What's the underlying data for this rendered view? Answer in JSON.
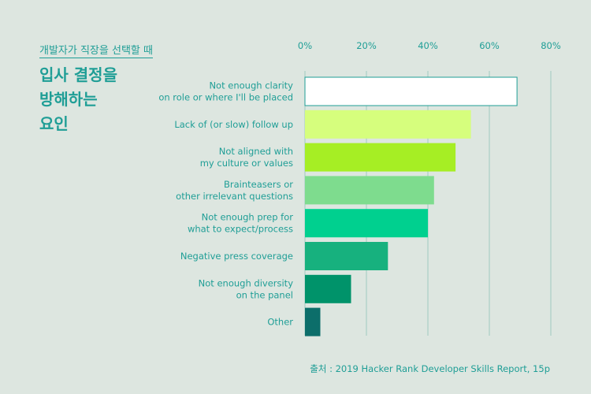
{
  "header": {
    "subtitle": "개발자가 직장을 선택할 때",
    "title_lines": [
      "입사 결정을",
      "방해하는",
      "요인"
    ]
  },
  "source": "출처 : 2019 Hacker Rank Developer Skills Report, 15p",
  "chart_data": {
    "type": "bar",
    "orientation": "horizontal",
    "title": "입사 결정을 방해하는 요인",
    "xlim": [
      0,
      80
    ],
    "xticks": [
      "0%",
      "20%",
      "40%",
      "60%",
      "80%"
    ],
    "xtick_values": [
      0,
      20,
      40,
      60,
      80
    ],
    "grid": true,
    "categories": [
      [
        "Not enough clarity",
        "on role or where I'll be placed"
      ],
      [
        "Lack of (or slow) follow up"
      ],
      [
        "Not aligned with",
        "my culture or values"
      ],
      [
        "Brainteasers or",
        "other irrelevant questions"
      ],
      [
        "Not enough prep for",
        "what to expect/process"
      ],
      [
        "Negative press coverage"
      ],
      [
        "Not enough diversity",
        "on the panel"
      ],
      [
        "Other"
      ]
    ],
    "values": [
      69,
      54,
      49,
      42,
      40,
      27,
      15,
      5
    ],
    "colors": [
      "#ffffff",
      "#d6fe7d",
      "#a6ee24",
      "#7edc8e",
      "#00d08f",
      "#17b17e",
      "#00936a",
      "#0c6e6a"
    ]
  }
}
